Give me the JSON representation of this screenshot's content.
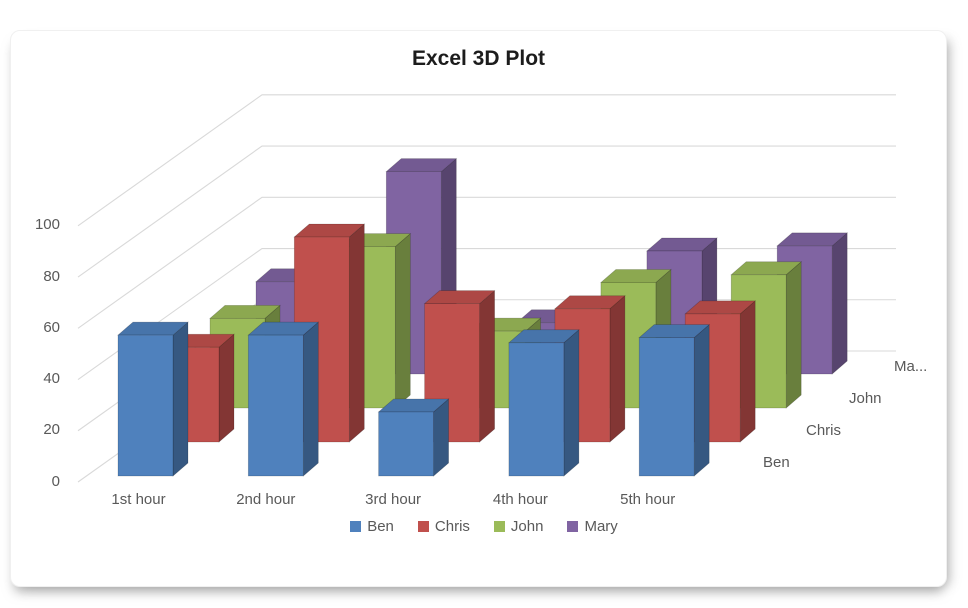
{
  "chart_data": {
    "type": "bar",
    "variant": "3d-column",
    "title": "Excel 3D Plot",
    "categories": [
      "1st hour",
      "2nd hour",
      "3rd hour",
      "4th hour",
      "5th hour"
    ],
    "series": [
      {
        "name": "Ben",
        "color": "#4F81BD",
        "values": [
          55,
          55,
          25,
          52,
          54
        ]
      },
      {
        "name": "Chris",
        "color": "#C0504D",
        "values": [
          37,
          80,
          54,
          52,
          50
        ]
      },
      {
        "name": "John",
        "color": "#9BBB59",
        "values": [
          35,
          63,
          30,
          49,
          52
        ]
      },
      {
        "name": "Mary",
        "color": "#8064A2",
        "values": [
          36,
          79,
          20,
          48,
          50
        ]
      }
    ],
    "value_axis": {
      "min": 0,
      "max": 100,
      "ticks": [
        0,
        20,
        40,
        60,
        80,
        100
      ]
    },
    "series_axis_labels": [
      "Ben",
      "Chris",
      "John",
      "Ma..."
    ],
    "legend": {
      "position": "bottom",
      "entries": [
        "Ben",
        "Chris",
        "John",
        "Mary"
      ]
    },
    "grid": true,
    "gridline_color": "#d9d9d9",
    "text_color": "#595959",
    "title_color": "#1c1c1c",
    "background": "#ffffff"
  }
}
